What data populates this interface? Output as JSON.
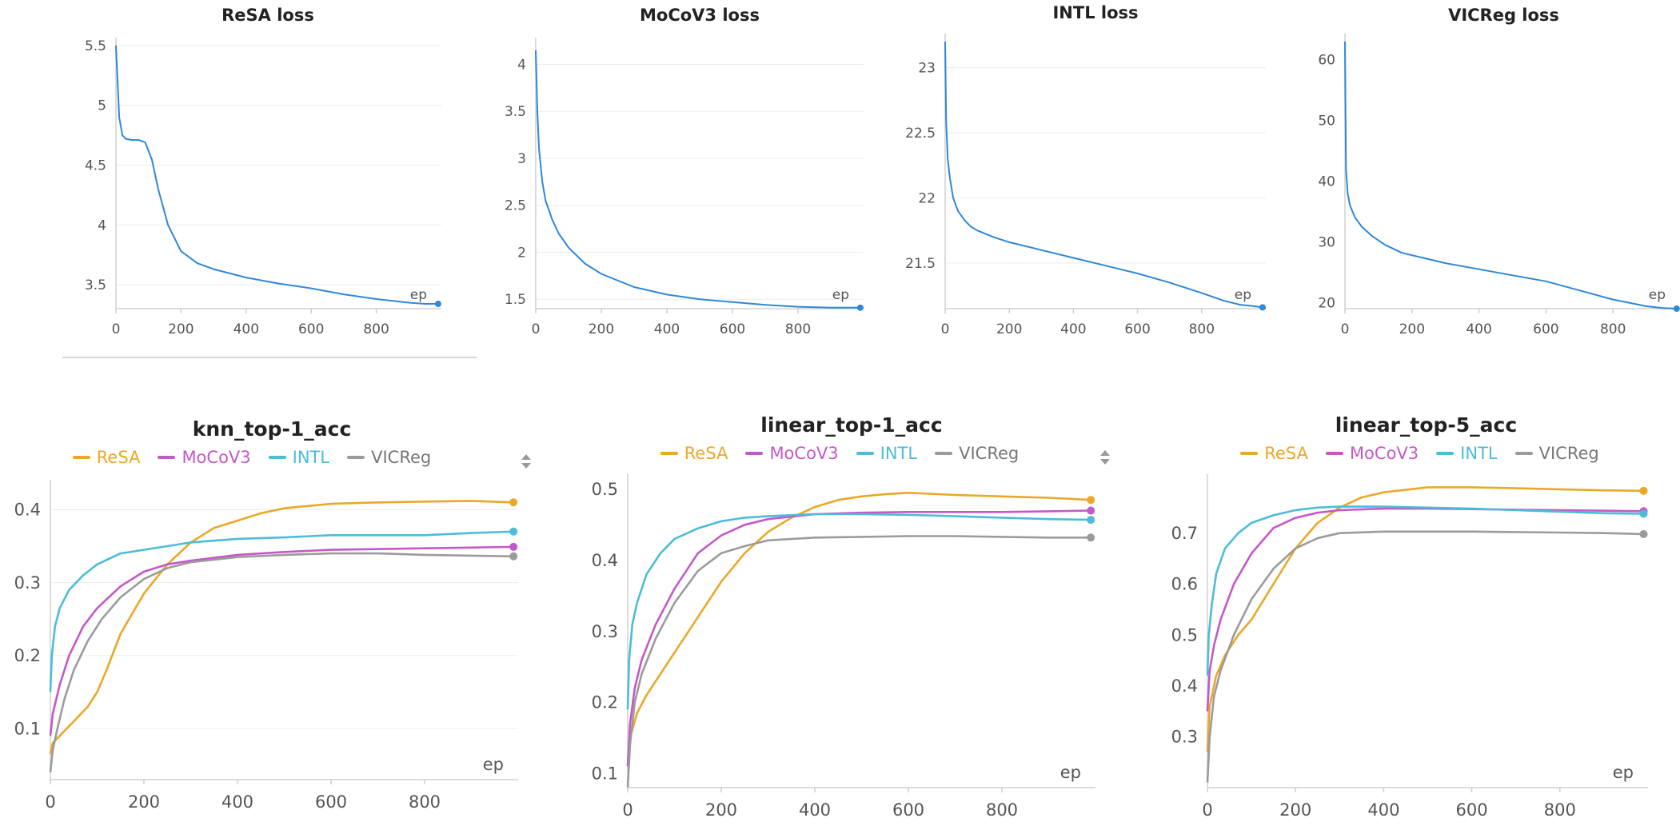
{
  "colors": {
    "ReSA": "#eaa828",
    "MoCoV3": "#c558c9",
    "INTL": "#4cbcd8",
    "VICReg": "#9b9b9b",
    "single": "#2f88d8"
  },
  "chart_data": [
    {
      "type": "line",
      "title": "ReSA loss",
      "xlabel": "ep",
      "xlim": [
        0,
        1000
      ],
      "ylim": [
        3.3,
        5.5
      ],
      "xticks": [
        0,
        200,
        400,
        600,
        800
      ],
      "yticks": [
        "3.5",
        "4",
        "4.5",
        "5",
        "5.5"
      ],
      "series": [
        {
          "color": "#2f88d8",
          "x": [
            0,
            10,
            20,
            30,
            50,
            70,
            90,
            110,
            130,
            160,
            200,
            250,
            300,
            400,
            500,
            600,
            700,
            800,
            900,
            950,
            990
          ],
          "y": [
            5.5,
            4.9,
            4.75,
            4.72,
            4.71,
            4.71,
            4.69,
            4.55,
            4.3,
            4.0,
            3.78,
            3.68,
            3.63,
            3.56,
            3.51,
            3.47,
            3.42,
            3.38,
            3.35,
            3.34,
            3.34
          ]
        }
      ]
    },
    {
      "type": "line",
      "title": "MoCoV3 loss",
      "xlabel": "ep",
      "xlim": [
        0,
        1000
      ],
      "ylim": [
        1.4,
        4.2
      ],
      "xticks": [
        0,
        200,
        400,
        600,
        800
      ],
      "yticks": [
        "1.5",
        "2",
        "2.5",
        "3",
        "3.5",
        "4"
      ],
      "series": [
        {
          "color": "#2f88d8",
          "x": [
            0,
            5,
            10,
            20,
            30,
            50,
            70,
            100,
            150,
            200,
            300,
            400,
            500,
            600,
            700,
            800,
            900,
            990
          ],
          "y": [
            4.15,
            3.5,
            3.1,
            2.75,
            2.55,
            2.35,
            2.2,
            2.05,
            1.88,
            1.77,
            1.63,
            1.55,
            1.5,
            1.47,
            1.44,
            1.42,
            1.41,
            1.41
          ]
        }
      ]
    },
    {
      "type": "line",
      "title": "INTL loss",
      "xlabel": "ep",
      "xlim": [
        0,
        1000
      ],
      "ylim": [
        21.15,
        23.2
      ],
      "xticks": [
        0,
        200,
        400,
        600,
        800
      ],
      "yticks": [
        "21.5",
        "22",
        "22.5",
        "23"
      ],
      "series": [
        {
          "color": "#2f88d8",
          "x": [
            0,
            3,
            8,
            15,
            25,
            40,
            60,
            80,
            100,
            150,
            200,
            300,
            400,
            500,
            600,
            700,
            800,
            870,
            920,
            960,
            990
          ],
          "y": [
            23.2,
            22.6,
            22.3,
            22.15,
            22.0,
            21.9,
            21.83,
            21.78,
            21.75,
            21.7,
            21.66,
            21.6,
            21.54,
            21.48,
            21.42,
            21.35,
            21.27,
            21.21,
            21.18,
            21.17,
            21.16
          ]
        }
      ]
    },
    {
      "type": "line",
      "title": "VICReg loss",
      "xlabel": "ep",
      "xlim": [
        0,
        1000
      ],
      "ylim": [
        19,
        63
      ],
      "xticks": [
        0,
        200,
        400,
        600,
        800
      ],
      "yticks": [
        "20",
        "30",
        "40",
        "50",
        "60"
      ],
      "series": [
        {
          "color": "#2f88d8",
          "x": [
            0,
            3,
            8,
            15,
            30,
            50,
            80,
            120,
            170,
            200,
            300,
            400,
            500,
            600,
            700,
            800,
            900,
            950,
            990
          ],
          "y": [
            63,
            42,
            38,
            36,
            34,
            32.5,
            31,
            29.5,
            28.2,
            27.8,
            26.5,
            25.5,
            24.5,
            23.5,
            22,
            20.5,
            19.4,
            19.1,
            19
          ]
        }
      ]
    },
    {
      "type": "line",
      "title": "knn_top-1_acc",
      "xlabel": "ep",
      "xlim": [
        0,
        1000
      ],
      "ylim": [
        0.03,
        0.43
      ],
      "xticks": [
        0,
        200,
        400,
        600,
        800
      ],
      "yticks": [
        "0.1",
        "0.2",
        "0.3",
        "0.4"
      ],
      "legend": "top-center",
      "series": [
        {
          "name": "ReSA",
          "color": "#eaa828",
          "x": [
            0,
            5,
            20,
            50,
            80,
            100,
            120,
            150,
            200,
            250,
            300,
            350,
            400,
            450,
            500,
            600,
            700,
            800,
            900,
            990
          ],
          "y": [
            0.065,
            0.08,
            0.09,
            0.11,
            0.13,
            0.15,
            0.18,
            0.23,
            0.285,
            0.325,
            0.355,
            0.375,
            0.385,
            0.395,
            0.402,
            0.408,
            0.41,
            0.411,
            0.412,
            0.41
          ]
        },
        {
          "name": "MoCoV3",
          "color": "#c558c9",
          "x": [
            0,
            5,
            20,
            40,
            70,
            100,
            150,
            200,
            250,
            300,
            400,
            500,
            600,
            700,
            800,
            900,
            990
          ],
          "y": [
            0.09,
            0.12,
            0.16,
            0.2,
            0.24,
            0.265,
            0.295,
            0.315,
            0.325,
            0.33,
            0.338,
            0.342,
            0.345,
            0.346,
            0.347,
            0.348,
            0.349
          ]
        },
        {
          "name": "INTL",
          "color": "#4cbcd8",
          "x": [
            0,
            3,
            10,
            20,
            40,
            70,
            100,
            150,
            200,
            250,
            300,
            400,
            500,
            600,
            700,
            800,
            900,
            990
          ],
          "y": [
            0.15,
            0.2,
            0.24,
            0.265,
            0.29,
            0.31,
            0.325,
            0.34,
            0.345,
            0.35,
            0.355,
            0.36,
            0.362,
            0.365,
            0.365,
            0.365,
            0.368,
            0.37
          ]
        },
        {
          "name": "VICReg",
          "color": "#9b9b9b",
          "x": [
            0,
            5,
            15,
            30,
            50,
            80,
            110,
            150,
            200,
            250,
            300,
            400,
            500,
            600,
            700,
            800,
            900,
            990
          ],
          "y": [
            0.04,
            0.07,
            0.1,
            0.14,
            0.18,
            0.22,
            0.25,
            0.28,
            0.305,
            0.32,
            0.328,
            0.335,
            0.338,
            0.34,
            0.34,
            0.338,
            0.337,
            0.336
          ]
        }
      ]
    },
    {
      "type": "line",
      "title": "linear_top-1_acc",
      "xlabel": "ep",
      "xlim": [
        0,
        1000
      ],
      "ylim": [
        0.08,
        0.51
      ],
      "xticks": [
        0,
        200,
        400,
        600,
        800
      ],
      "yticks": [
        "0.1",
        "0.2",
        "0.3",
        "0.4",
        "0.5"
      ],
      "legend": "top-center",
      "series": [
        {
          "name": "ReSA",
          "color": "#eaa828",
          "x": [
            0,
            5,
            20,
            40,
            70,
            100,
            150,
            200,
            250,
            300,
            350,
            400,
            450,
            500,
            550,
            600,
            700,
            800,
            900,
            990
          ],
          "y": [
            0.11,
            0.15,
            0.185,
            0.21,
            0.24,
            0.27,
            0.32,
            0.37,
            0.41,
            0.44,
            0.46,
            0.475,
            0.485,
            0.49,
            0.493,
            0.495,
            0.492,
            0.49,
            0.488,
            0.485
          ]
        },
        {
          "name": "MoCoV3",
          "color": "#c558c9",
          "x": [
            0,
            5,
            15,
            30,
            60,
            100,
            150,
            200,
            250,
            300,
            400,
            500,
            600,
            700,
            800,
            900,
            990
          ],
          "y": [
            0.11,
            0.17,
            0.22,
            0.26,
            0.31,
            0.36,
            0.41,
            0.435,
            0.45,
            0.458,
            0.465,
            0.467,
            0.468,
            0.468,
            0.468,
            0.469,
            0.47
          ]
        },
        {
          "name": "INTL",
          "color": "#4cbcd8",
          "x": [
            0,
            3,
            10,
            20,
            40,
            70,
            100,
            150,
            200,
            250,
            300,
            400,
            500,
            600,
            700,
            800,
            900,
            990
          ],
          "y": [
            0.19,
            0.26,
            0.31,
            0.34,
            0.38,
            0.41,
            0.43,
            0.445,
            0.455,
            0.46,
            0.462,
            0.465,
            0.465,
            0.464,
            0.462,
            0.46,
            0.458,
            0.457
          ]
        },
        {
          "name": "VICReg",
          "color": "#9b9b9b",
          "x": [
            0,
            5,
            15,
            30,
            60,
            100,
            150,
            200,
            250,
            300,
            400,
            500,
            600,
            700,
            800,
            900,
            990
          ],
          "y": [
            0.08,
            0.14,
            0.2,
            0.24,
            0.29,
            0.34,
            0.385,
            0.41,
            0.42,
            0.428,
            0.432,
            0.433,
            0.434,
            0.434,
            0.433,
            0.432,
            0.432
          ]
        }
      ]
    },
    {
      "type": "line",
      "title": "linear_top-5_acc",
      "xlabel": "ep",
      "xlim": [
        0,
        1000
      ],
      "ylim": [
        0.2,
        0.8
      ],
      "xticks": [
        0,
        200,
        400,
        600,
        800
      ],
      "yticks": [
        "0.3",
        "0.4",
        "0.5",
        "0.6",
        "0.7"
      ],
      "legend": "top-center",
      "series": [
        {
          "name": "ReSA",
          "color": "#eaa828",
          "x": [
            0,
            5,
            20,
            40,
            70,
            100,
            150,
            200,
            250,
            300,
            350,
            400,
            450,
            500,
            600,
            700,
            800,
            900,
            990
          ],
          "y": [
            0.27,
            0.36,
            0.42,
            0.46,
            0.5,
            0.53,
            0.6,
            0.67,
            0.72,
            0.75,
            0.77,
            0.78,
            0.785,
            0.79,
            0.79,
            0.788,
            0.786,
            0.784,
            0.783
          ]
        },
        {
          "name": "MoCoV3",
          "color": "#c558c9",
          "x": [
            0,
            5,
            15,
            30,
            60,
            100,
            150,
            200,
            250,
            300,
            400,
            500,
            600,
            700,
            800,
            900,
            990
          ],
          "y": [
            0.35,
            0.43,
            0.48,
            0.53,
            0.6,
            0.66,
            0.71,
            0.73,
            0.74,
            0.745,
            0.748,
            0.748,
            0.747,
            0.746,
            0.745,
            0.744,
            0.743
          ]
        },
        {
          "name": "INTL",
          "color": "#4cbcd8",
          "x": [
            0,
            3,
            10,
            20,
            40,
            70,
            100,
            150,
            200,
            250,
            300,
            400,
            500,
            600,
            700,
            800,
            900,
            990
          ],
          "y": [
            0.42,
            0.5,
            0.56,
            0.62,
            0.67,
            0.7,
            0.72,
            0.735,
            0.745,
            0.75,
            0.752,
            0.752,
            0.75,
            0.748,
            0.745,
            0.742,
            0.739,
            0.738
          ]
        },
        {
          "name": "VICReg",
          "color": "#9b9b9b",
          "x": [
            0,
            5,
            15,
            30,
            60,
            100,
            150,
            200,
            250,
            300,
            400,
            500,
            600,
            700,
            800,
            900,
            990
          ],
          "y": [
            0.21,
            0.3,
            0.38,
            0.43,
            0.5,
            0.57,
            0.63,
            0.67,
            0.69,
            0.7,
            0.703,
            0.703,
            0.703,
            0.702,
            0.701,
            0.7,
            0.698
          ]
        }
      ]
    }
  ]
}
